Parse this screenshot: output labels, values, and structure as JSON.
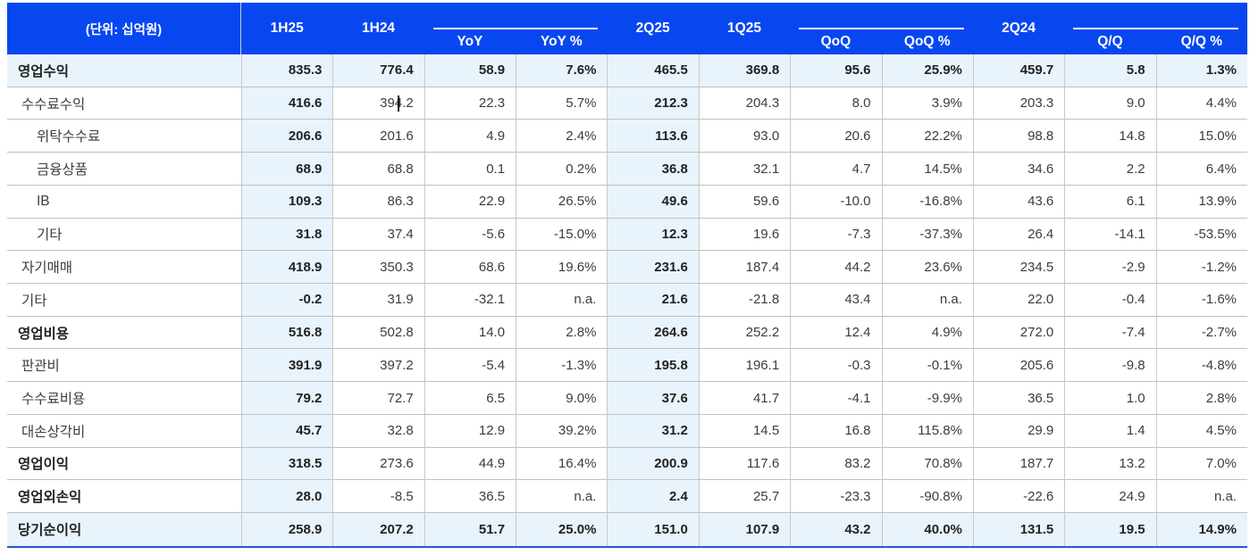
{
  "colors": {
    "header_bg": "#0847f0",
    "header_text": "#ffffff",
    "highlight_bg": "#e9f3fb",
    "grid_line": "#c0c0c0",
    "bottom_rule": "#2056d8"
  },
  "table": {
    "unit_label": "(단위: 십억원)",
    "header": {
      "columns": [
        {
          "type": "plain",
          "label": "1H25"
        },
        {
          "type": "plain",
          "label": "1H24"
        },
        {
          "type": "group",
          "subs": [
            "YoY",
            "YoY %"
          ]
        },
        {
          "type": "plain",
          "label": "2Q25"
        },
        {
          "type": "plain",
          "label": "1Q25"
        },
        {
          "type": "group",
          "subs": [
            "QoQ",
            "QoQ %"
          ]
        },
        {
          "type": "plain",
          "label": "2Q24"
        },
        {
          "type": "group",
          "subs": [
            "Q/Q",
            "Q/Q %"
          ]
        }
      ]
    },
    "highlight_value_columns": [
      0,
      4
    ],
    "caret": {
      "row_index": 1,
      "col_index": 1
    },
    "rows": [
      {
        "label": "영업수익",
        "indent": 0,
        "bold_label": true,
        "bold_values": true,
        "row_highlight": true,
        "values": [
          "835.3",
          "776.4",
          "58.9",
          "7.6%",
          "465.5",
          "369.8",
          "95.6",
          "25.9%",
          "459.7",
          "5.8",
          "1.3%"
        ]
      },
      {
        "label": "수수료수익",
        "indent": 1,
        "bold_label": false,
        "bold_values": false,
        "row_highlight": false,
        "values": [
          "416.6",
          "394.2",
          "22.3",
          "5.7%",
          "212.3",
          "204.3",
          "8.0",
          "3.9%",
          "203.3",
          "9.0",
          "4.4%"
        ]
      },
      {
        "label": "위탁수수료",
        "indent": 2,
        "bold_label": false,
        "bold_values": false,
        "row_highlight": false,
        "values": [
          "206.6",
          "201.6",
          "4.9",
          "2.4%",
          "113.6",
          "93.0",
          "20.6",
          "22.2%",
          "98.8",
          "14.8",
          "15.0%"
        ]
      },
      {
        "label": "금융상품",
        "indent": 2,
        "bold_label": false,
        "bold_values": false,
        "row_highlight": false,
        "values": [
          "68.9",
          "68.8",
          "0.1",
          "0.2%",
          "36.8",
          "32.1",
          "4.7",
          "14.5%",
          "34.6",
          "2.2",
          "6.4%"
        ]
      },
      {
        "label": "IB",
        "indent": 2,
        "bold_label": false,
        "bold_values": false,
        "row_highlight": false,
        "values": [
          "109.3",
          "86.3",
          "22.9",
          "26.5%",
          "49.6",
          "59.6",
          "-10.0",
          "-16.8%",
          "43.6",
          "6.1",
          "13.9%"
        ]
      },
      {
        "label": "기타",
        "indent": 2,
        "bold_label": false,
        "bold_values": false,
        "row_highlight": false,
        "values": [
          "31.8",
          "37.4",
          "-5.6",
          "-15.0%",
          "12.3",
          "19.6",
          "-7.3",
          "-37.3%",
          "26.4",
          "-14.1",
          "-53.5%"
        ]
      },
      {
        "label": "자기매매",
        "indent": 1,
        "bold_label": false,
        "bold_values": false,
        "row_highlight": false,
        "values": [
          "418.9",
          "350.3",
          "68.6",
          "19.6%",
          "231.6",
          "187.4",
          "44.2",
          "23.6%",
          "234.5",
          "-2.9",
          "-1.2%"
        ]
      },
      {
        "label": "기타",
        "indent": 1,
        "bold_label": false,
        "bold_values": false,
        "row_highlight": false,
        "values": [
          "-0.2",
          "31.9",
          "-32.1",
          "n.a.",
          "21.6",
          "-21.8",
          "43.4",
          "n.a.",
          "22.0",
          "-0.4",
          "-1.6%"
        ]
      },
      {
        "label": "영업비용",
        "indent": 0,
        "bold_label": true,
        "bold_values": false,
        "row_highlight": false,
        "values": [
          "516.8",
          "502.8",
          "14.0",
          "2.8%",
          "264.6",
          "252.2",
          "12.4",
          "4.9%",
          "272.0",
          "-7.4",
          "-2.7%"
        ]
      },
      {
        "label": "판관비",
        "indent": 1,
        "bold_label": false,
        "bold_values": false,
        "row_highlight": false,
        "values": [
          "391.9",
          "397.2",
          "-5.4",
          "-1.3%",
          "195.8",
          "196.1",
          "-0.3",
          "-0.1%",
          "205.6",
          "-9.8",
          "-4.8%"
        ]
      },
      {
        "label": "수수료비용",
        "indent": 1,
        "bold_label": false,
        "bold_values": false,
        "row_highlight": false,
        "values": [
          "79.2",
          "72.7",
          "6.5",
          "9.0%",
          "37.6",
          "41.7",
          "-4.1",
          "-9.9%",
          "36.5",
          "1.0",
          "2.8%"
        ]
      },
      {
        "label": "대손상각비",
        "indent": 1,
        "bold_label": false,
        "bold_values": false,
        "row_highlight": false,
        "values": [
          "45.7",
          "32.8",
          "12.9",
          "39.2%",
          "31.2",
          "14.5",
          "16.8",
          "115.8%",
          "29.9",
          "1.4",
          "4.5%"
        ]
      },
      {
        "label": "영업이익",
        "indent": 0,
        "bold_label": true,
        "bold_values": false,
        "row_highlight": false,
        "values": [
          "318.5",
          "273.6",
          "44.9",
          "16.4%",
          "200.9",
          "117.6",
          "83.2",
          "70.8%",
          "187.7",
          "13.2",
          "7.0%"
        ]
      },
      {
        "label": "영업외손익",
        "indent": 0,
        "bold_label": true,
        "bold_values": false,
        "row_highlight": false,
        "values": [
          "28.0",
          "-8.5",
          "36.5",
          "n.a.",
          "2.4",
          "25.7",
          "-23.3",
          "-90.8%",
          "-22.6",
          "24.9",
          "n.a."
        ]
      },
      {
        "label": "당기순이익",
        "indent": 0,
        "bold_label": true,
        "bold_values": true,
        "row_highlight": true,
        "values": [
          "258.9",
          "207.2",
          "51.7",
          "25.0%",
          "151.0",
          "107.9",
          "43.2",
          "40.0%",
          "131.5",
          "19.5",
          "14.9%"
        ]
      }
    ]
  }
}
